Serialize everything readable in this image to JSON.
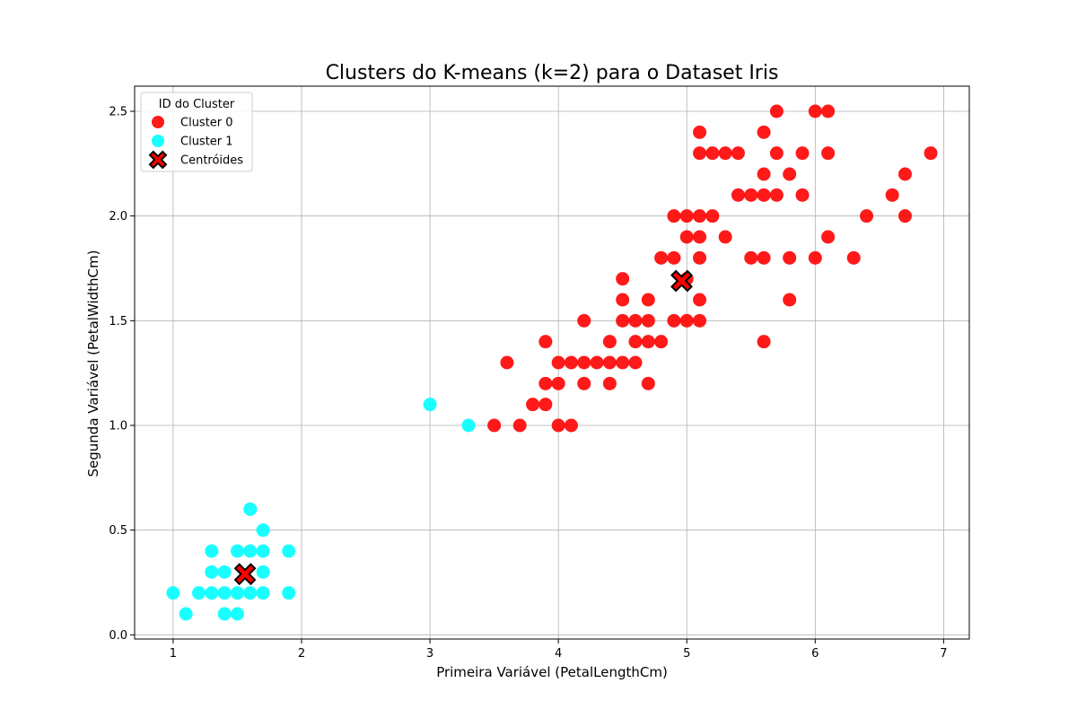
{
  "chart_data": {
    "type": "scatter",
    "title": "Clusters do K-means (k=2) para o Dataset Iris",
    "xlabel": "Primeira Variável (PetalLengthCm)",
    "ylabel": "Segunda Variável (PetalWidthCm)",
    "xlim": [
      0.7,
      7.2
    ],
    "ylim": [
      -0.02,
      2.62
    ],
    "x_ticks": [
      "1",
      "2",
      "3",
      "4",
      "5",
      "6",
      "7"
    ],
    "y_ticks": [
      "0.0",
      "0.5",
      "1.0",
      "1.5",
      "2.0",
      "2.5"
    ],
    "grid": true,
    "legend": {
      "title": "ID do Cluster",
      "placement": "top-left"
    },
    "series": [
      {
        "name": "Cluster 0",
        "color": "#ff0000",
        "marker": "circle",
        "points": [
          [
            3.5,
            1.0
          ],
          [
            3.6,
            1.3
          ],
          [
            3.7,
            1.0
          ],
          [
            3.8,
            1.1
          ],
          [
            3.9,
            1.1
          ],
          [
            3.9,
            1.2
          ],
          [
            3.9,
            1.4
          ],
          [
            4.0,
            1.0
          ],
          [
            4.0,
            1.2
          ],
          [
            4.0,
            1.3
          ],
          [
            4.1,
            1.0
          ],
          [
            4.1,
            1.3
          ],
          [
            4.2,
            1.2
          ],
          [
            4.2,
            1.3
          ],
          [
            4.2,
            1.5
          ],
          [
            4.3,
            1.3
          ],
          [
            4.4,
            1.2
          ],
          [
            4.4,
            1.3
          ],
          [
            4.4,
            1.4
          ],
          [
            4.5,
            1.3
          ],
          [
            4.5,
            1.5
          ],
          [
            4.5,
            1.6
          ],
          [
            4.5,
            1.7
          ],
          [
            4.6,
            1.3
          ],
          [
            4.6,
            1.4
          ],
          [
            4.6,
            1.5
          ],
          [
            4.7,
            1.2
          ],
          [
            4.7,
            1.4
          ],
          [
            4.7,
            1.5
          ],
          [
            4.7,
            1.6
          ],
          [
            4.8,
            1.4
          ],
          [
            4.8,
            1.8
          ],
          [
            4.9,
            1.5
          ],
          [
            4.9,
            1.8
          ],
          [
            4.9,
            2.0
          ],
          [
            5.0,
            1.5
          ],
          [
            5.0,
            1.7
          ],
          [
            5.0,
            1.9
          ],
          [
            5.0,
            2.0
          ],
          [
            5.1,
            1.5
          ],
          [
            5.1,
            1.6
          ],
          [
            5.1,
            1.8
          ],
          [
            5.1,
            1.9
          ],
          [
            5.1,
            2.0
          ],
          [
            5.1,
            2.3
          ],
          [
            5.1,
            2.4
          ],
          [
            5.2,
            2.0
          ],
          [
            5.2,
            2.3
          ],
          [
            5.3,
            1.9
          ],
          [
            5.3,
            2.3
          ],
          [
            5.4,
            2.1
          ],
          [
            5.4,
            2.3
          ],
          [
            5.5,
            1.8
          ],
          [
            5.5,
            2.1
          ],
          [
            5.6,
            1.4
          ],
          [
            5.6,
            1.8
          ],
          [
            5.6,
            2.1
          ],
          [
            5.6,
            2.2
          ],
          [
            5.6,
            2.4
          ],
          [
            5.7,
            2.1
          ],
          [
            5.7,
            2.3
          ],
          [
            5.7,
            2.5
          ],
          [
            5.8,
            1.6
          ],
          [
            5.8,
            1.8
          ],
          [
            5.8,
            2.2
          ],
          [
            5.9,
            2.1
          ],
          [
            5.9,
            2.3
          ],
          [
            6.0,
            1.8
          ],
          [
            6.0,
            2.5
          ],
          [
            6.1,
            1.9
          ],
          [
            6.1,
            2.3
          ],
          [
            6.1,
            2.5
          ],
          [
            6.3,
            1.8
          ],
          [
            6.4,
            2.0
          ],
          [
            6.6,
            2.1
          ],
          [
            6.7,
            2.0
          ],
          [
            6.7,
            2.2
          ],
          [
            6.9,
            2.3
          ]
        ]
      },
      {
        "name": "Cluster 1",
        "color": "#00ffff",
        "marker": "circle",
        "points": [
          [
            1.0,
            0.2
          ],
          [
            1.1,
            0.1
          ],
          [
            1.2,
            0.2
          ],
          [
            1.3,
            0.2
          ],
          [
            1.3,
            0.3
          ],
          [
            1.3,
            0.4
          ],
          [
            1.4,
            0.1
          ],
          [
            1.4,
            0.2
          ],
          [
            1.4,
            0.3
          ],
          [
            1.5,
            0.1
          ],
          [
            1.5,
            0.2
          ],
          [
            1.5,
            0.4
          ],
          [
            1.6,
            0.2
          ],
          [
            1.6,
            0.4
          ],
          [
            1.6,
            0.6
          ],
          [
            1.7,
            0.2
          ],
          [
            1.7,
            0.3
          ],
          [
            1.7,
            0.4
          ],
          [
            1.7,
            0.5
          ],
          [
            1.9,
            0.2
          ],
          [
            1.9,
            0.4
          ],
          [
            3.0,
            1.1
          ],
          [
            3.3,
            1.0
          ]
        ]
      },
      {
        "name": "Centróides",
        "color": "#ff0000",
        "marker": "x",
        "points": [
          [
            4.96,
            1.69
          ],
          [
            1.56,
            0.29
          ]
        ]
      }
    ]
  }
}
